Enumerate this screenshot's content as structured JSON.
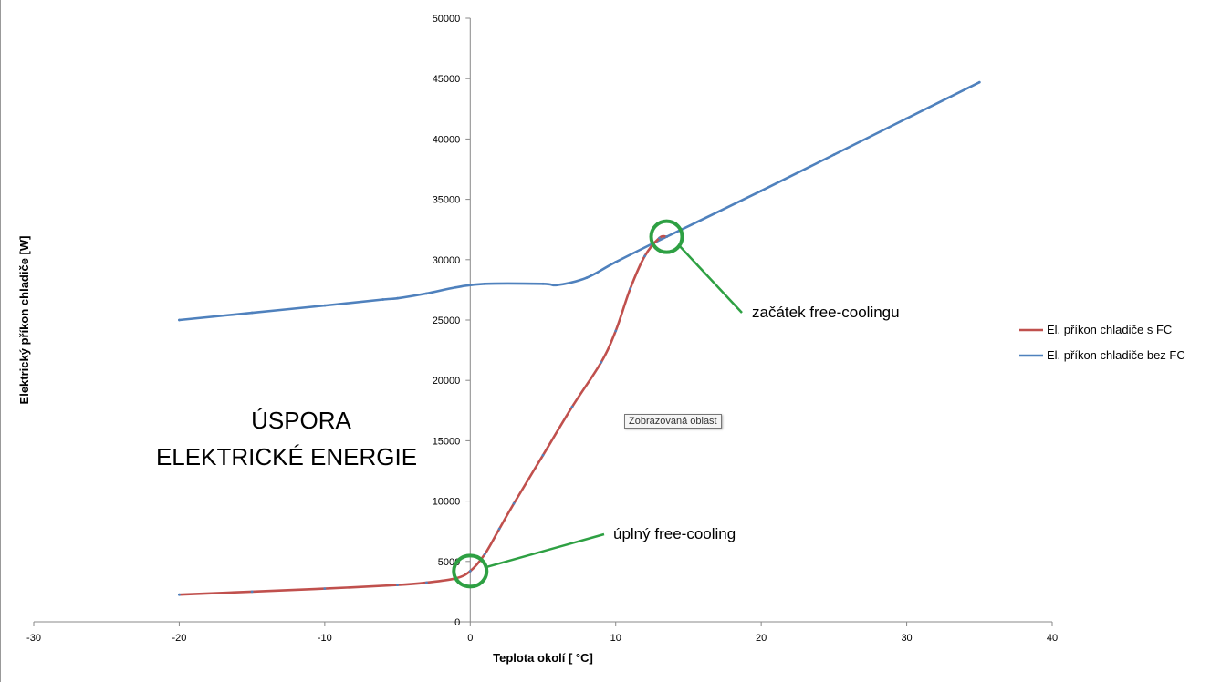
{
  "chart_data": {
    "type": "line",
    "title": "",
    "xlabel": "Teplota  okolí  [ °C]",
    "ylabel": "Elektrický příkon chladiče [W]",
    "xlim": [
      -30,
      40
    ],
    "ylim": [
      0,
      50000
    ],
    "x_ticks": [
      -30,
      -20,
      -10,
      0,
      10,
      20,
      30,
      40
    ],
    "y_ticks": [
      0,
      5000,
      10000,
      15000,
      20000,
      25000,
      30000,
      35000,
      40000,
      45000,
      50000
    ],
    "grid": false,
    "legend_position": "right",
    "series": [
      {
        "name": "El. příkon chladiče s FC",
        "color": "#c0504d",
        "x": [
          -20,
          -15,
          -10,
          -5,
          -3,
          -1,
          0,
          1,
          2,
          3,
          5,
          7,
          9,
          10,
          11,
          12,
          13,
          13.5
        ],
        "values": [
          2250,
          2500,
          2750,
          3050,
          3250,
          3600,
          4200,
          5600,
          7700,
          9800,
          13800,
          17800,
          21500,
          24100,
          27600,
          30300,
          31800,
          31900
        ]
      },
      {
        "name": "El. příkon chladiče bez FC",
        "color": "#4f81bd",
        "x": [
          -20,
          -15,
          -10,
          -6,
          -5,
          -3,
          -1,
          1,
          5,
          6,
          8,
          10,
          13.5,
          20,
          25,
          30,
          35
        ],
        "values": [
          25000,
          25600,
          26200,
          26700,
          26800,
          27200,
          27700,
          28000,
          28000,
          27900,
          28500,
          29800,
          31900,
          35700,
          38700,
          41700,
          44700
        ]
      }
    ],
    "annotations": {
      "savings_line1": "ÚSPORA",
      "savings_line2": "ELEKTRICKÉ ENERGIE",
      "start_label": "začátek free-coolingu",
      "start_point": [
        13.5,
        31900
      ],
      "full_label": "úplný free-cooling",
      "full_point": [
        0,
        4200
      ]
    },
    "tooltip": "Zobrazovaná oblast",
    "annotation_color": "#2ea043"
  }
}
